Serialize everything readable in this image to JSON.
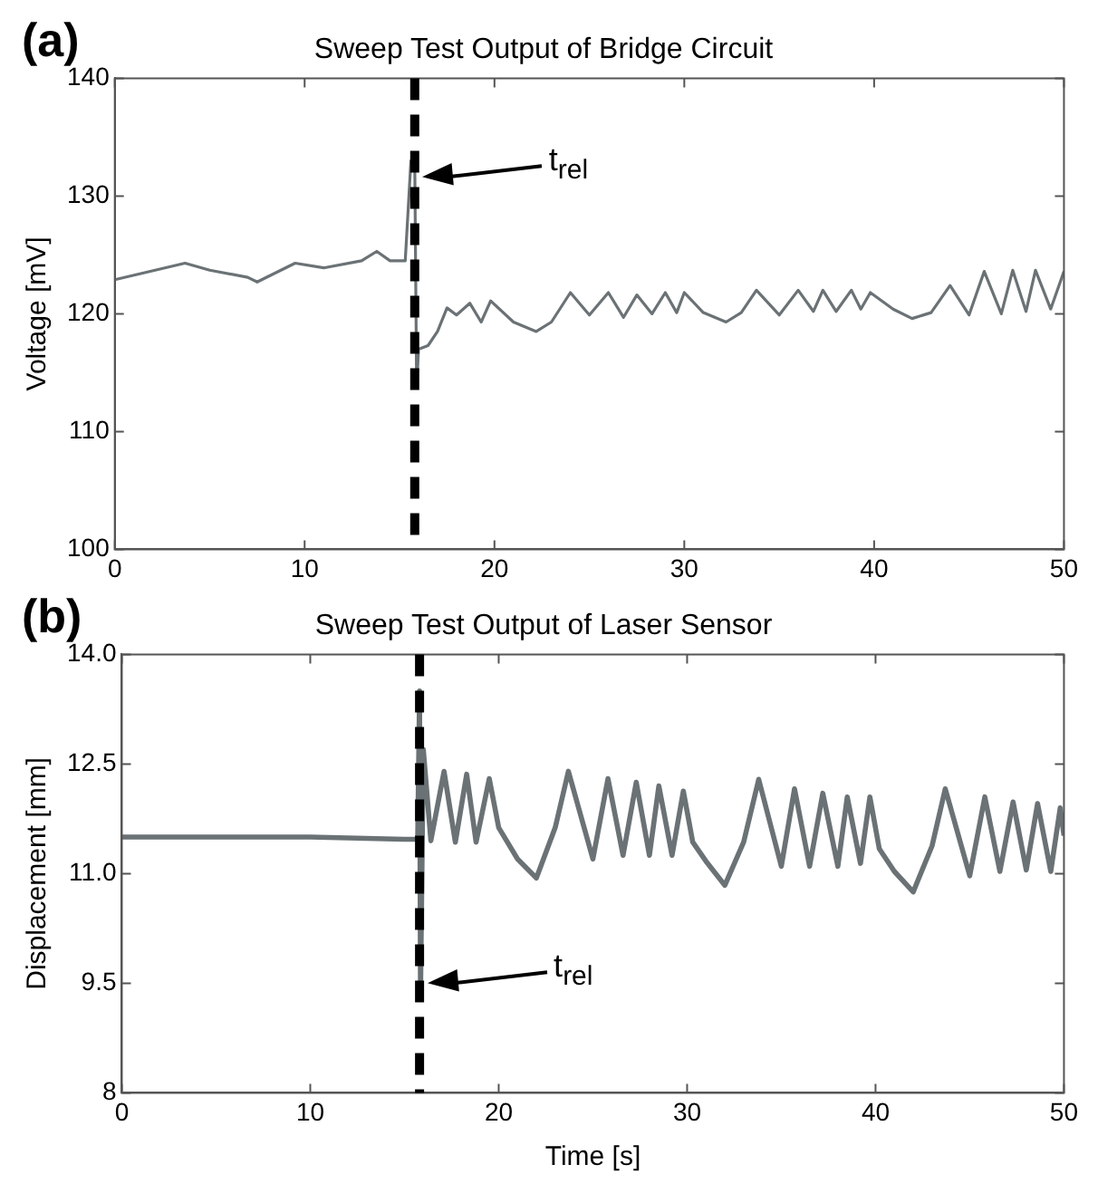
{
  "chart_data": [
    {
      "type": "line",
      "title": "Sweep Test Output of Bridge Circuit",
      "ylabel": "Voltage [mV]",
      "annotations": [
        "(a)"
      ],
      "xlim": [
        0,
        50
      ],
      "xticks": [
        0,
        10,
        20,
        30,
        40,
        50
      ],
      "ylim": [
        100,
        140
      ],
      "yticks": [
        100,
        110,
        120,
        130,
        140
      ],
      "grid": false,
      "legend": false,
      "marker": "none",
      "line_style": "solid",
      "ref_lines": [
        {
          "axis": "x",
          "value": 15.8,
          "label": "t$_{rel}$",
          "color": "#000000",
          "line_style": "dashed"
        }
      ],
      "series": [
        {
          "color": "#6b7275",
          "x": [
            0,
            3.7,
            5,
            7,
            7.5,
            9.5,
            11,
            13,
            13.8,
            14.5,
            15.3,
            15.6,
            15.8,
            15.9,
            16,
            16.5,
            17,
            17.5,
            18,
            18.7,
            19.3,
            19.8,
            21,
            22.2,
            23,
            24,
            25,
            26,
            26.8,
            27.5,
            28.3,
            29,
            29.6,
            30,
            31,
            32.2,
            33,
            33.8,
            35,
            36,
            36.8,
            37.3,
            38,
            38.8,
            39.3,
            39.8,
            41,
            42,
            43,
            44,
            45,
            45.8,
            46.7,
            47.3,
            48,
            48.5,
            49.3,
            50
          ],
          "values": [
            122.9,
            124.3,
            123.7,
            123.1,
            122.7,
            124.3,
            123.9,
            124.5,
            125.3,
            124.5,
            124.5,
            133,
            133,
            113.7,
            117,
            117.3,
            118.5,
            120.5,
            119.9,
            120.9,
            119.3,
            121.1,
            119.3,
            118.5,
            119.3,
            121.8,
            119.9,
            121.8,
            119.7,
            121.6,
            120,
            121.8,
            120.1,
            121.8,
            120.1,
            119.3,
            120.1,
            122,
            119.9,
            122,
            120.2,
            122,
            120.2,
            122,
            120.4,
            121.8,
            120.4,
            119.6,
            120.1,
            122.4,
            119.9,
            123.6,
            120,
            123.7,
            120.2,
            123.7,
            120.4,
            123.6
          ]
        }
      ]
    },
    {
      "type": "line",
      "title": "Sweep Test Output of Laser Sensor",
      "xlabel": "Time [s]",
      "ylabel": "Displacement [mm]",
      "annotations": [
        "(b)"
      ],
      "xlim": [
        0,
        50
      ],
      "xticks": [
        0,
        10,
        20,
        30,
        40,
        50
      ],
      "ylim": [
        8,
        14
      ],
      "yticks": [
        8,
        {
          "value": 9.5,
          "label": "9.5"
        },
        {
          "value": 11,
          "label": "11.0"
        },
        {
          "value": 12.5,
          "label": "12.5"
        },
        {
          "value": 14,
          "label": "14.0"
        }
      ],
      "grid": false,
      "legend": false,
      "marker": "none",
      "line_style": "solid",
      "ref_lines": [
        {
          "axis": "x",
          "value": 15.8,
          "label": "t$_{rel}$",
          "color": "#000000",
          "line_style": "dashed"
        }
      ],
      "series": [
        {
          "color": "#6b7275",
          "x": [
            0,
            5,
            10,
            15,
            15.7,
            15.8,
            15.85,
            16,
            16.4,
            17.1,
            17.7,
            18.3,
            18.8,
            19.5,
            20,
            21,
            22,
            23,
            23.7,
            25,
            25.8,
            26.6,
            27.3,
            28,
            28.5,
            29.2,
            29.8,
            30.3,
            31,
            32,
            33,
            33.8,
            35,
            35.7,
            36.5,
            37.2,
            38,
            38.5,
            39.2,
            39.7,
            40.2,
            41,
            42,
            43,
            43.7,
            45,
            45.8,
            46.6,
            47.3,
            48,
            48.6,
            49.3,
            49.8,
            50
          ],
          "values": [
            11.5,
            11.5,
            11.5,
            11.47,
            11.47,
            13.5,
            9.3,
            12.7,
            11.45,
            12.4,
            11.43,
            12.36,
            11.43,
            12.3,
            11.63,
            11.2,
            10.94,
            11.63,
            12.4,
            11.2,
            12.3,
            11.25,
            12.25,
            11.25,
            12.2,
            11.25,
            12.13,
            11.43,
            11.17,
            10.84,
            11.43,
            12.29,
            11.1,
            12.16,
            11.1,
            12.1,
            11.1,
            12.05,
            11.14,
            12.05,
            11.34,
            11.03,
            10.75,
            11.38,
            12.16,
            10.97,
            12.05,
            11.03,
            11.98,
            11.05,
            11.96,
            11.03,
            11.9,
            11.52
          ]
        }
      ]
    }
  ]
}
